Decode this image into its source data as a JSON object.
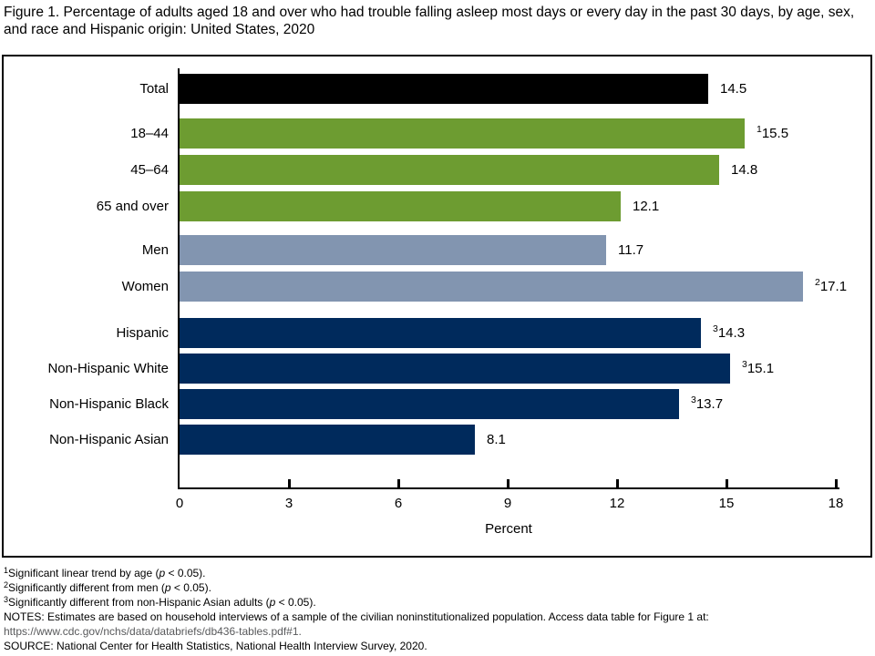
{
  "title": "Figure 1. Percentage of adults aged 18 and over who had trouble falling asleep most days or every day in the past 30 days, by age, sex, and race and Hispanic origin: United States, 2020",
  "colors": {
    "total": "#000000",
    "age": "#6d9c31",
    "sex": "#8295b0",
    "race": "#002a5c"
  },
  "chart_data": {
    "type": "bar",
    "orientation": "horizontal",
    "title": "Percentage of adults aged 18 and over who had trouble falling asleep most days or every day in the past 30 days, by age, sex, and race and Hispanic origin: United States, 2020",
    "xlabel": "Percent",
    "ylabel": "",
    "xlim": [
      0,
      18
    ],
    "xticks": [
      0,
      3,
      6,
      9,
      12,
      15,
      18
    ],
    "grid": false,
    "legend": false,
    "rows": [
      {
        "label": "Total",
        "value": 14.5,
        "value_label": "14.5",
        "sup": "",
        "color_key": "total",
        "group": "total"
      },
      {
        "label": "18–44",
        "value": 15.5,
        "value_label": "15.5",
        "sup": "1",
        "color_key": "age",
        "group": "age"
      },
      {
        "label": "45–64",
        "value": 14.8,
        "value_label": "14.8",
        "sup": "",
        "color_key": "age",
        "group": "age"
      },
      {
        "label": "65 and over",
        "value": 12.1,
        "value_label": "12.1",
        "sup": "",
        "color_key": "age",
        "group": "age"
      },
      {
        "label": "Men",
        "value": 11.7,
        "value_label": "11.7",
        "sup": "",
        "color_key": "sex",
        "group": "sex"
      },
      {
        "label": "Women",
        "value": 17.1,
        "value_label": "17.1",
        "sup": "2",
        "color_key": "sex",
        "group": "sex"
      },
      {
        "label": "Hispanic",
        "value": 14.3,
        "value_label": "14.3",
        "sup": "3",
        "color_key": "race",
        "group": "race"
      },
      {
        "label": "Non-Hispanic White",
        "value": 15.1,
        "value_label": "15.1",
        "sup": "3",
        "color_key": "race",
        "group": "race"
      },
      {
        "label": "Non-Hispanic Black",
        "value": 13.7,
        "value_label": "13.7",
        "sup": "3",
        "color_key": "race",
        "group": "race"
      },
      {
        "label": "Non-Hispanic Asian",
        "value": 8.1,
        "value_label": "8.1",
        "sup": "",
        "color_key": "race",
        "group": "race"
      }
    ]
  },
  "footnotes": {
    "f1": {
      "sup": "1",
      "text": "Significant linear trend by age (",
      "p": "p",
      "tail": " < 0.05)."
    },
    "f2": {
      "sup": "2",
      "text": "Significantly different from men (",
      "p": "p",
      "tail": " < 0.05)."
    },
    "f3": {
      "sup": "3",
      "text": "Significantly different from non-Hispanic Asian adults (",
      "p": "p",
      "tail": " < 0.05)."
    },
    "notes_line": "NOTES: Estimates are based on household interviews of a sample of the civilian noninstitutionalized population. Access data table for Figure 1 at:",
    "notes_url": "https://www.cdc.gov/nchs/data/databriefs/db436-tables.pdf#1.",
    "source_line": "SOURCE: National Center for Health Statistics, National Health Interview Survey, 2020."
  }
}
